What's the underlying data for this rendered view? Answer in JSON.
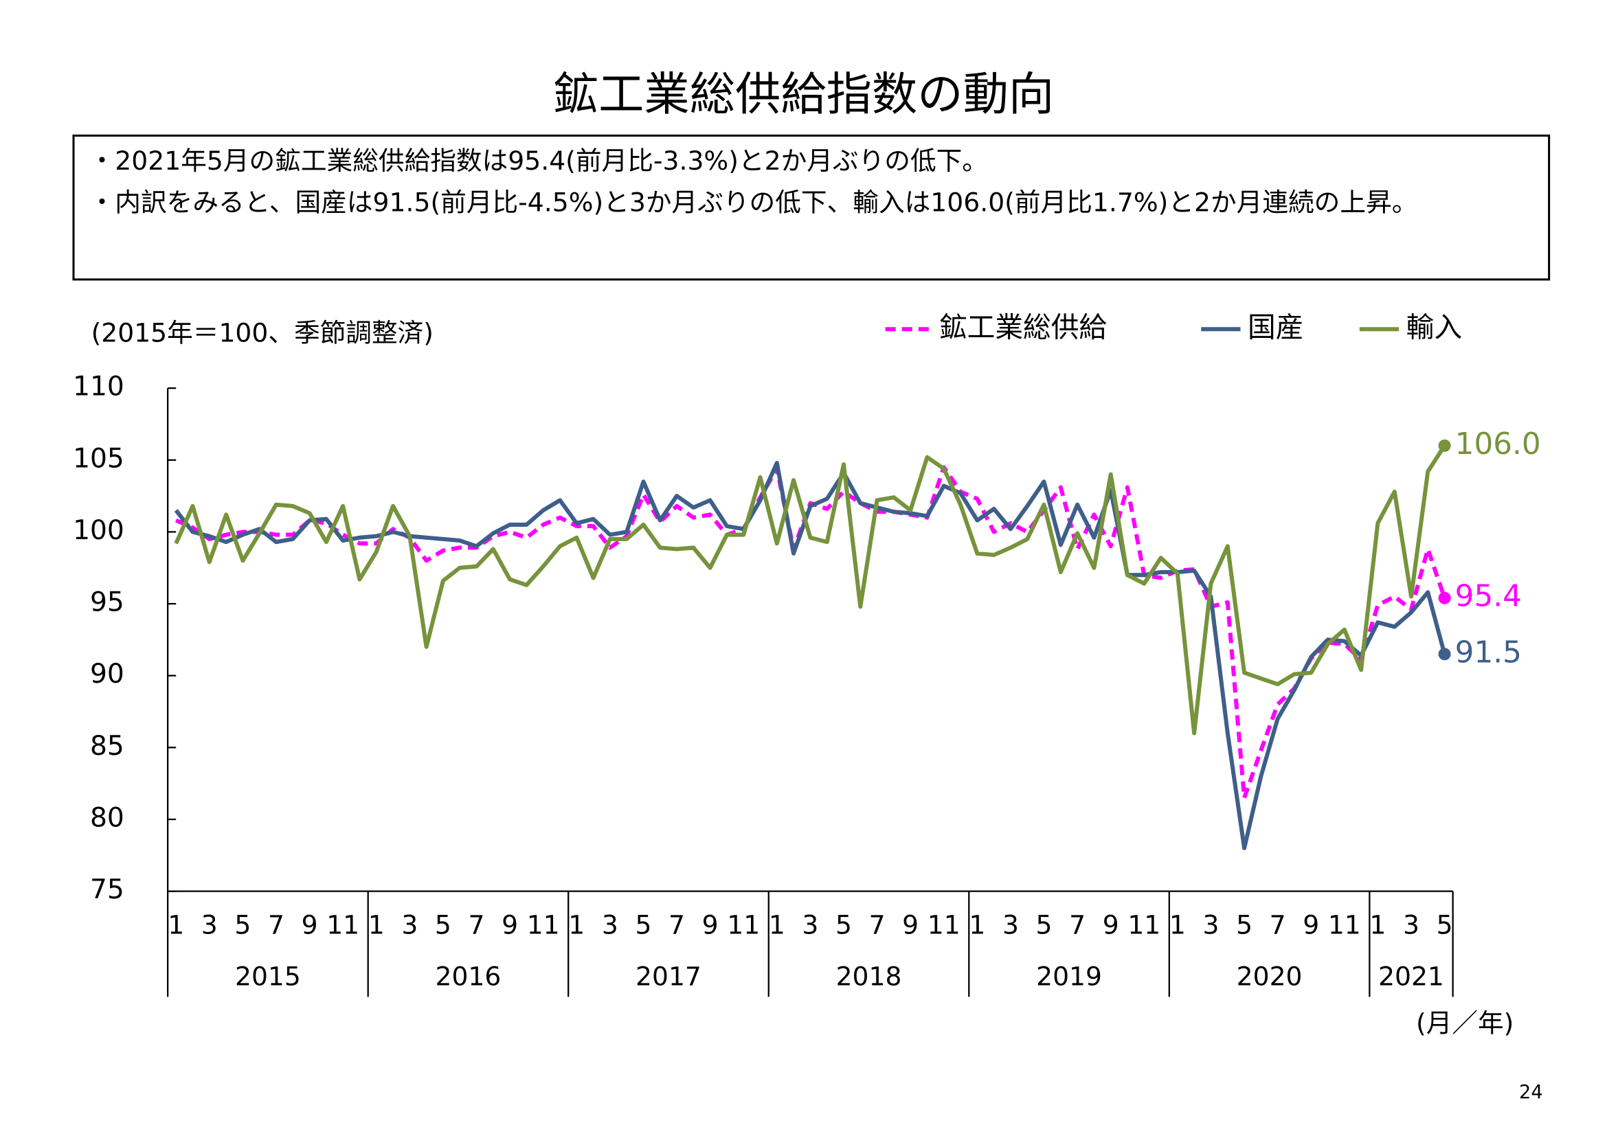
{
  "title": "鉱工業総供給指数の動向",
  "notes": [
    "・2021年5月の鉱工業総供給指数は95.4(前月比-3.3%)と2か月ぶりの低下。",
    "・内訳をみると、国産は91.5(前月比-4.5%)と3か月ぶりの低下、輸入は106.0(前月比1.7%)と2か月連続の上昇。"
  ],
  "page_number": "24",
  "chart_data": {
    "type": "line",
    "y_unit_label": "(2015年＝100、季節調整済)",
    "x_unit_label": "(月／年)",
    "years": [
      "2015",
      "2016",
      "2017",
      "2018",
      "2019",
      "2020",
      "2021"
    ],
    "categories": [
      "1",
      null,
      "3",
      null,
      "5",
      null,
      "7",
      null,
      "9",
      null,
      "11",
      null,
      "1",
      null,
      "3",
      null,
      "5",
      null,
      "7",
      null,
      "9",
      null,
      "11",
      null,
      "1",
      null,
      "3",
      null,
      "5",
      null,
      "7",
      null,
      "9",
      null,
      "11",
      null,
      "1",
      null,
      "3",
      null,
      "5",
      null,
      "7",
      null,
      "9",
      null,
      "11",
      null,
      "1",
      null,
      "3",
      null,
      "5",
      null,
      "7",
      null,
      "9",
      null,
      "11",
      null,
      "1",
      null,
      "3",
      null,
      "5",
      null,
      "7",
      null,
      "9",
      null,
      "11",
      null,
      "1",
      null,
      "3",
      null,
      "5"
    ],
    "ylim": [
      75,
      110
    ],
    "yticks": [
      75,
      80,
      85,
      90,
      95,
      100,
      105,
      110
    ],
    "series": [
      {
        "name": "鉱工業総供給",
        "color": "#ff00ff",
        "dashed": true,
        "end_label": "95.4",
        "values": [
          100.8,
          100.3,
          99.5,
          99.8,
          100.0,
          100.0,
          99.8,
          99.8,
          100.8,
          100.6,
          99.8,
          99.2,
          99.2,
          100.2,
          99.6,
          98.0,
          98.7,
          98.9,
          98.9,
          99.7,
          100.0,
          99.6,
          100.5,
          101.0,
          100.4,
          100.4,
          98.9,
          99.7,
          102.6,
          100.7,
          101.8,
          101.0,
          101.2,
          99.8,
          100.2,
          102.4,
          104.4,
          98.8,
          102.0,
          101.6,
          102.8,
          102.0,
          101.4,
          101.4,
          101.2,
          101.0,
          104.5,
          102.8,
          102.3,
          100.0,
          100.6,
          100.0,
          101.5,
          103.1,
          98.8,
          101.2,
          99.0,
          103.1,
          97.0,
          96.8,
          97.3,
          97.4,
          94.8,
          95.1,
          81.5,
          84.8,
          88.0,
          89.1,
          91.2,
          92.3,
          92.2,
          91.1,
          94.9,
          95.5,
          94.6,
          98.8,
          95.4
        ]
      },
      {
        "name": "国産",
        "color": "#3e5f8a",
        "dashed": false,
        "end_label": "91.5",
        "values": [
          101.5,
          100.0,
          99.7,
          99.3,
          99.8,
          100.2,
          99.3,
          99.5,
          100.8,
          100.9,
          99.4,
          99.6,
          99.7,
          100.0,
          99.7,
          99.6,
          99.5,
          99.4,
          99.0,
          99.9,
          100.5,
          100.5,
          101.5,
          102.2,
          100.6,
          100.9,
          99.8,
          100.0,
          103.5,
          100.8,
          102.5,
          101.7,
          102.2,
          100.4,
          100.2,
          102.2,
          104.8,
          98.5,
          101.8,
          102.3,
          104.1,
          102.0,
          101.7,
          101.4,
          101.3,
          101.1,
          103.2,
          102.7,
          100.8,
          101.6,
          100.2,
          101.8,
          103.5,
          99.1,
          101.9,
          99.6,
          102.9,
          97.0,
          97.0,
          97.2,
          97.2,
          97.3,
          95.5,
          86.0,
          78.0,
          83.0,
          87.0,
          89.0,
          91.3,
          92.5,
          92.4,
          91.4,
          93.7,
          93.4,
          94.4,
          95.8,
          91.5
        ]
      },
      {
        "name": "輸入",
        "color": "#77933c",
        "dashed": false,
        "end_label": "106.0",
        "values": [
          99.2,
          101.8,
          97.9,
          101.2,
          98.0,
          99.9,
          101.9,
          101.8,
          101.3,
          99.3,
          101.8,
          96.7,
          98.6,
          101.8,
          99.7,
          92.0,
          96.6,
          97.5,
          97.6,
          98.8,
          96.7,
          96.3,
          97.6,
          99.0,
          99.6,
          96.8,
          99.5,
          99.5,
          100.5,
          98.9,
          98.8,
          98.9,
          97.5,
          99.8,
          99.8,
          103.8,
          99.2,
          103.6,
          99.6,
          99.3,
          104.7,
          94.8,
          102.2,
          102.4,
          101.5,
          105.2,
          104.4,
          101.9,
          98.5,
          98.4,
          98.9,
          99.5,
          101.9,
          97.2,
          99.9,
          97.5,
          104.0,
          97.0,
          96.4,
          98.2,
          97.1,
          86.0,
          96.4,
          99.0,
          90.2,
          89.8,
          89.4,
          90.1,
          90.2,
          92.2,
          93.2,
          90.4,
          100.6,
          102.8,
          95.5,
          104.2,
          106.0
        ]
      }
    ]
  }
}
